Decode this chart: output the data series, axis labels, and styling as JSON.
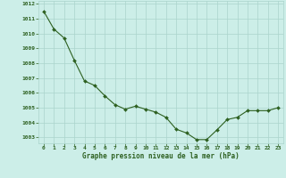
{
  "x": [
    0,
    1,
    2,
    3,
    4,
    5,
    6,
    7,
    8,
    9,
    10,
    11,
    12,
    13,
    14,
    15,
    16,
    17,
    18,
    19,
    20,
    21,
    22,
    23
  ],
  "y": [
    1011.5,
    1010.3,
    1009.7,
    1008.2,
    1006.8,
    1006.5,
    1005.8,
    1005.2,
    1004.9,
    1005.1,
    1004.9,
    1004.7,
    1004.35,
    1003.55,
    1003.3,
    1002.85,
    1002.85,
    1003.5,
    1004.2,
    1004.35,
    1004.8,
    1004.8,
    1004.8,
    1005.0
  ],
  "ylim": [
    1002.6,
    1012.2
  ],
  "xlim": [
    -0.5,
    23.5
  ],
  "yticks": [
    1003,
    1004,
    1005,
    1006,
    1007,
    1008,
    1009,
    1010,
    1011,
    1012
  ],
  "xticks": [
    0,
    1,
    2,
    3,
    4,
    5,
    6,
    7,
    8,
    9,
    10,
    11,
    12,
    13,
    14,
    15,
    16,
    17,
    18,
    19,
    20,
    21,
    22,
    23
  ],
  "line_color": "#2d6020",
  "marker_color": "#2d6020",
  "bg_plot": "#cceee8",
  "bg_figure": "#cceee8",
  "grid_color": "#aad4cc",
  "xlabel": "Graphe pression niveau de la mer (hPa)",
  "xlabel_color": "#2d6020",
  "tick_color": "#2d6020"
}
